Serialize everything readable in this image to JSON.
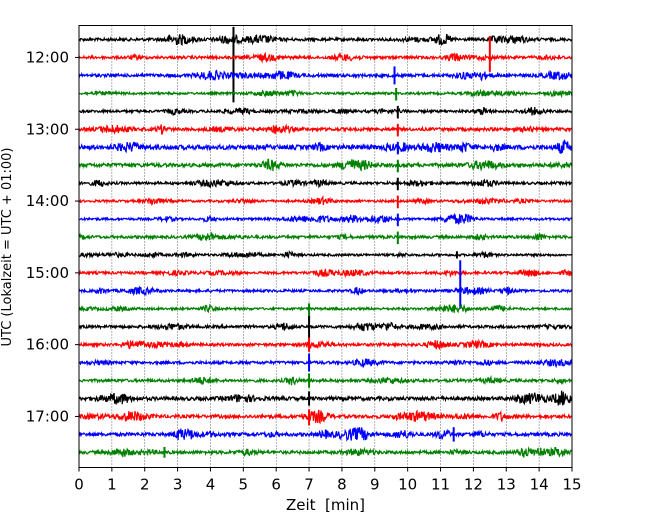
{
  "chart_data": {
    "type": "line",
    "title": "",
    "xlabel": "Zeit  [min]",
    "ylabel": "UTC (Lokalzeit = UTC + 01:00)",
    "xlim": [
      0,
      15
    ],
    "x_ticks": [
      0,
      1,
      2,
      3,
      4,
      5,
      6,
      7,
      8,
      9,
      10,
      11,
      12,
      13,
      14,
      15
    ],
    "y_tick_labels": [
      "12:00",
      "13:00",
      "14:00",
      "15:00",
      "16:00",
      "17:00"
    ],
    "grid": "vertical dotted at each minute",
    "trace_interval_minutes": 15,
    "traces": [
      {
        "start": "11:45",
        "color": "#000000",
        "noise": 1.0,
        "spikes": [
          {
            "x": 4.7,
            "up": 0.7,
            "down": 3.5
          }
        ]
      },
      {
        "start": "12:00",
        "color": "#ff0000",
        "noise": 1.0,
        "spikes": [
          {
            "x": 12.5,
            "up": 1.2,
            "down": 0.8
          }
        ]
      },
      {
        "start": "12:15",
        "color": "#0000ff",
        "noise": 1.1,
        "spikes": [
          {
            "x": 9.6,
            "up": 0.5,
            "down": 0.5
          }
        ]
      },
      {
        "start": "12:30",
        "color": "#008000",
        "noise": 0.8,
        "spikes": [
          {
            "x": 9.65,
            "up": 0.3,
            "down": 0.4
          }
        ]
      },
      {
        "start": "12:45",
        "color": "#000000",
        "noise": 0.9,
        "spikes": [
          {
            "x": 9.7,
            "up": 0.3,
            "down": 0.4
          }
        ]
      },
      {
        "start": "13:00",
        "color": "#ff0000",
        "noise": 1.1,
        "spikes": [
          {
            "x": 9.7,
            "up": 0.3,
            "down": 0.4
          }
        ]
      },
      {
        "start": "13:15",
        "color": "#0000ff",
        "noise": 1.6,
        "spikes": [
          {
            "x": 9.7,
            "up": 0.3,
            "down": 0.4
          }
        ]
      },
      {
        "start": "13:30",
        "color": "#008000",
        "noise": 1.3,
        "spikes": [
          {
            "x": 9.7,
            "up": 0.3,
            "down": 0.4
          }
        ]
      },
      {
        "start": "13:45",
        "color": "#000000",
        "noise": 0.9,
        "spikes": [
          {
            "x": 9.7,
            "up": 0.3,
            "down": 0.4
          }
        ]
      },
      {
        "start": "14:00",
        "color": "#ff0000",
        "noise": 0.8,
        "spikes": [
          {
            "x": 9.7,
            "up": 0.3,
            "down": 0.4
          }
        ]
      },
      {
        "start": "14:15",
        "color": "#0000ff",
        "noise": 0.8,
        "spikes": [
          {
            "x": 9.7,
            "up": 0.3,
            "down": 0.4
          }
        ]
      },
      {
        "start": "14:30",
        "color": "#008000",
        "noise": 1.0,
        "spikes": [
          {
            "x": 9.7,
            "up": 0.3,
            "down": 0.4
          }
        ]
      },
      {
        "start": "14:45",
        "color": "#000000",
        "noise": 0.8,
        "spikes": [
          {
            "x": 11.5,
            "up": 0.2,
            "down": 0.2
          }
        ]
      },
      {
        "start": "15:00",
        "color": "#ff0000",
        "noise": 0.9,
        "spikes": []
      },
      {
        "start": "15:15",
        "color": "#0000ff",
        "noise": 0.9,
        "spikes": [
          {
            "x": 11.6,
            "up": 1.7,
            "down": 1.0
          }
        ]
      },
      {
        "start": "15:30",
        "color": "#008000",
        "noise": 0.8,
        "spikes": [
          {
            "x": 7.0,
            "up": 0.3,
            "down": 0.6
          }
        ]
      },
      {
        "start": "15:45",
        "color": "#000000",
        "noise": 1.0,
        "spikes": [
          {
            "x": 7.0,
            "up": 0.6,
            "down": 0.6
          }
        ]
      },
      {
        "start": "16:00",
        "color": "#ff0000",
        "noise": 1.0,
        "spikes": [
          {
            "x": 7.0,
            "up": 0.4,
            "down": 0.4
          }
        ]
      },
      {
        "start": "16:15",
        "color": "#0000ff",
        "noise": 1.0,
        "spikes": [
          {
            "x": 7.0,
            "up": 0.5,
            "down": 0.5
          }
        ]
      },
      {
        "start": "16:30",
        "color": "#008000",
        "noise": 1.0,
        "spikes": [
          {
            "x": 7.0,
            "up": 0.4,
            "down": 0.4
          }
        ]
      },
      {
        "start": "16:45",
        "color": "#000000",
        "noise": 1.3,
        "spikes": [
          {
            "x": 7.0,
            "up": 0.4,
            "down": 0.4
          }
        ]
      },
      {
        "start": "17:00",
        "color": "#ff0000",
        "noise": 1.2,
        "spikes": [
          {
            "x": 7.0,
            "up": 0.4,
            "down": 0.5
          }
        ]
      },
      {
        "start": "17:15",
        "color": "#0000ff",
        "noise": 1.2,
        "spikes": [
          {
            "x": 11.4,
            "up": 0.4,
            "down": 0.4
          }
        ]
      },
      {
        "start": "17:30",
        "color": "#008000",
        "noise": 1.1,
        "spikes": [
          {
            "x": 2.6,
            "up": 0.3,
            "down": 0.3
          }
        ]
      }
    ]
  }
}
